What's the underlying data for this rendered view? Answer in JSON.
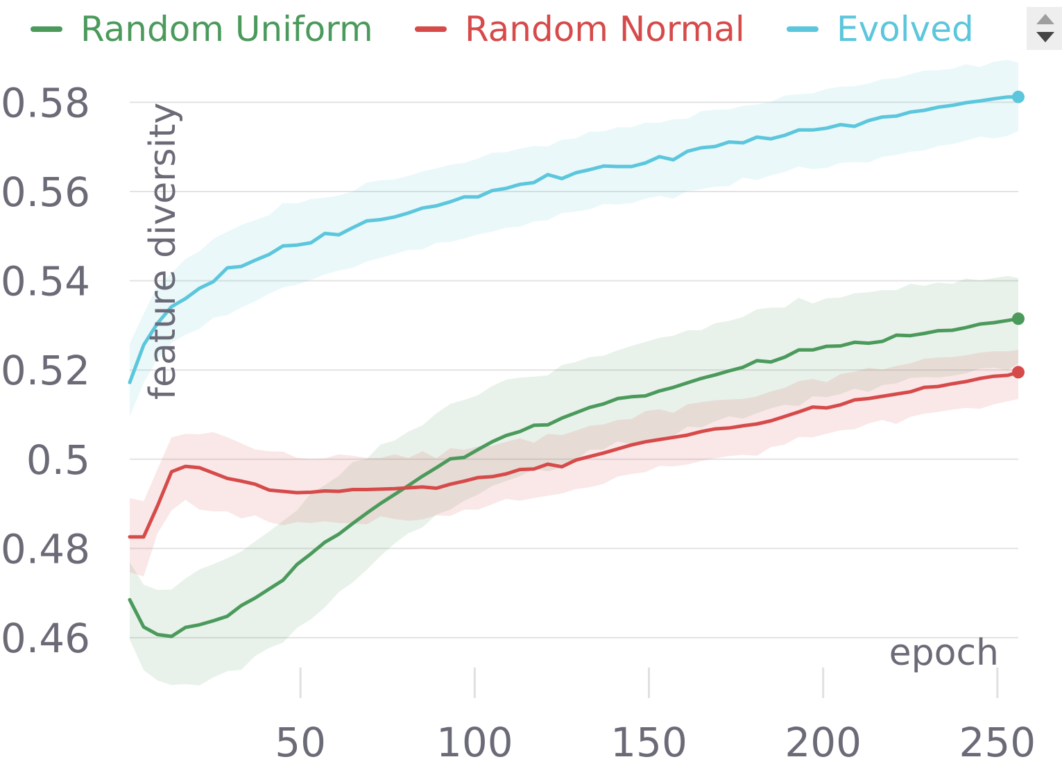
{
  "legend": {
    "items": [
      {
        "label": "Random Uniform",
        "color": "#4b9a5c"
      },
      {
        "label": "Random Normal",
        "color": "#d64a4a"
      },
      {
        "label": "Evolved",
        "color": "#5bc6dc"
      }
    ]
  },
  "scroll_control": {
    "up_icon": "triangle-up-icon",
    "down_icon": "triangle-down-icon"
  },
  "chart_data": {
    "type": "line",
    "xlabel": "epoch",
    "ylabel": "feature diversity",
    "xlim": [
      1,
      256
    ],
    "ylim": [
      0.45,
      0.59
    ],
    "xticks": [
      50,
      100,
      150,
      200,
      250
    ],
    "yticks": [
      0.46,
      0.48,
      0.5,
      0.52,
      0.54,
      0.56,
      0.58
    ],
    "ytick_labels": [
      "0.46",
      "0.48",
      "0.5",
      "0.52",
      "0.54",
      "0.56",
      "0.58"
    ],
    "xtick_labels": [
      "50",
      "100",
      "150",
      "200",
      "250"
    ],
    "grid": true,
    "legend_position": "top",
    "series": [
      {
        "name": "Random Uniform",
        "color": "#4b9a5c",
        "x": [
          1,
          5,
          9,
          13,
          17,
          21,
          25,
          29,
          33,
          37,
          41,
          45,
          49,
          53,
          57,
          61,
          65,
          69,
          73,
          77,
          81,
          85,
          89,
          93,
          97,
          101,
          105,
          109,
          113,
          117,
          121,
          125,
          129,
          133,
          137,
          141,
          145,
          149,
          153,
          157,
          161,
          165,
          169,
          173,
          177,
          181,
          185,
          189,
          193,
          197,
          201,
          205,
          209,
          213,
          217,
          221,
          225,
          229,
          233,
          237,
          241,
          245,
          249,
          253,
          256
        ],
        "y": [
          0.4685,
          0.4624,
          0.4607,
          0.4603,
          0.4623,
          0.4629,
          0.4638,
          0.4648,
          0.4672,
          0.4689,
          0.4709,
          0.4729,
          0.4764,
          0.4788,
          0.4814,
          0.4832,
          0.4856,
          0.4879,
          0.4901,
          0.4921,
          0.4941,
          0.4962,
          0.4981,
          0.5001,
          0.5004,
          0.5022,
          0.5039,
          0.5053,
          0.5062,
          0.5076,
          0.5077,
          0.5092,
          0.5104,
          0.5116,
          0.5124,
          0.5136,
          0.514,
          0.5142,
          0.5153,
          0.5161,
          0.5171,
          0.5181,
          0.5189,
          0.5198,
          0.5206,
          0.5221,
          0.5218,
          0.5229,
          0.5245,
          0.5245,
          0.5253,
          0.5254,
          0.5262,
          0.526,
          0.5264,
          0.5278,
          0.5277,
          0.5282,
          0.5288,
          0.5289,
          0.5295,
          0.5303,
          0.5306,
          0.5311,
          0.5315
        ],
        "lower": [
          0.4596,
          0.4527,
          0.4504,
          0.4494,
          0.4496,
          0.4493,
          0.4511,
          0.4525,
          0.4528,
          0.4559,
          0.4577,
          0.4589,
          0.4622,
          0.4641,
          0.4668,
          0.4702,
          0.4724,
          0.4752,
          0.4783,
          0.4811,
          0.4834,
          0.4847,
          0.4876,
          0.4887,
          0.4907,
          0.4921,
          0.494,
          0.4951,
          0.4962,
          0.4978,
          0.4973,
          0.4981,
          0.4999,
          0.5021,
          0.5022,
          0.504,
          0.5033,
          0.5039,
          0.5041,
          0.5052,
          0.5073,
          0.5071,
          0.5085,
          0.5096,
          0.5091,
          0.5103,
          0.5114,
          0.5122,
          0.5119,
          0.5141,
          0.5139,
          0.5146,
          0.5158,
          0.5151,
          0.5166,
          0.517,
          0.5182,
          0.5184,
          0.5183,
          0.5187,
          0.5192,
          0.5203,
          0.5205,
          0.52,
          0.5215
        ],
        "upper": [
          0.4769,
          0.4719,
          0.4707,
          0.4708,
          0.4733,
          0.4753,
          0.4765,
          0.4778,
          0.4793,
          0.4816,
          0.4838,
          0.4862,
          0.4885,
          0.4924,
          0.4942,
          0.4963,
          0.4994,
          0.5001,
          0.5033,
          0.5042,
          0.5062,
          0.5076,
          0.5103,
          0.5124,
          0.5133,
          0.5144,
          0.5164,
          0.5178,
          0.5183,
          0.5185,
          0.5188,
          0.5211,
          0.5218,
          0.5229,
          0.5232,
          0.5244,
          0.5254,
          0.5263,
          0.5272,
          0.5277,
          0.5289,
          0.5289,
          0.5305,
          0.531,
          0.5319,
          0.5336,
          0.534,
          0.534,
          0.5362,
          0.5349,
          0.5361,
          0.5362,
          0.5372,
          0.5374,
          0.5379,
          0.5379,
          0.5393,
          0.5389,
          0.5396,
          0.5393,
          0.5405,
          0.5401,
          0.5406,
          0.5411,
          0.5406
        ]
      },
      {
        "name": "Random Normal",
        "color": "#d64a4a",
        "x": [
          1,
          5,
          9,
          13,
          17,
          21,
          25,
          29,
          33,
          37,
          41,
          45,
          49,
          53,
          57,
          61,
          65,
          69,
          73,
          77,
          81,
          85,
          89,
          93,
          97,
          101,
          105,
          109,
          113,
          117,
          121,
          125,
          129,
          133,
          137,
          141,
          145,
          149,
          153,
          157,
          161,
          165,
          169,
          173,
          177,
          181,
          185,
          189,
          193,
          197,
          201,
          205,
          209,
          213,
          217,
          221,
          225,
          229,
          233,
          237,
          241,
          245,
          249,
          253,
          256
        ],
        "y": [
          0.4826,
          0.4826,
          0.4896,
          0.4972,
          0.4984,
          0.4981,
          0.4969,
          0.4957,
          0.4951,
          0.4944,
          0.4931,
          0.4928,
          0.4925,
          0.4926,
          0.4929,
          0.4928,
          0.4932,
          0.4932,
          0.4933,
          0.4934,
          0.4936,
          0.4938,
          0.4935,
          0.4944,
          0.4951,
          0.4959,
          0.4961,
          0.4967,
          0.4977,
          0.4978,
          0.4989,
          0.4983,
          0.4998,
          0.5006,
          0.5014,
          0.5023,
          0.5032,
          0.5039,
          0.5044,
          0.5049,
          0.5054,
          0.5062,
          0.5068,
          0.507,
          0.5075,
          0.5079,
          0.5086,
          0.5096,
          0.5106,
          0.5117,
          0.5115,
          0.5122,
          0.5133,
          0.5136,
          0.5141,
          0.5146,
          0.5151,
          0.5161,
          0.5163,
          0.5169,
          0.5174,
          0.5181,
          0.5186,
          0.5188,
          0.5195
        ],
        "lower": [
          0.4747,
          0.4737,
          0.4834,
          0.4885,
          0.4909,
          0.4887,
          0.4883,
          0.4883,
          0.4867,
          0.4874,
          0.4859,
          0.4852,
          0.4859,
          0.4857,
          0.4861,
          0.4857,
          0.4856,
          0.4854,
          0.4872,
          0.4866,
          0.4862,
          0.4865,
          0.4874,
          0.4873,
          0.4887,
          0.4887,
          0.4899,
          0.4911,
          0.4907,
          0.4913,
          0.4918,
          0.4923,
          0.4933,
          0.4937,
          0.4945,
          0.4961,
          0.4967,
          0.4971,
          0.4985,
          0.4984,
          0.4988,
          0.4996,
          0.5002,
          0.5007,
          0.501,
          0.5008,
          0.5027,
          0.5033,
          0.505,
          0.5049,
          0.5057,
          0.5065,
          0.5067,
          0.508,
          0.5088,
          0.5079,
          0.5095,
          0.5102,
          0.5106,
          0.5111,
          0.5115,
          0.5113,
          0.5123,
          0.513,
          0.5135
        ],
        "upper": [
          0.4913,
          0.4906,
          0.4978,
          0.5049,
          0.5057,
          0.5056,
          0.5061,
          0.5049,
          0.5036,
          0.5022,
          0.5018,
          0.5017,
          0.5003,
          0.5001,
          0.5002,
          0.5011,
          0.5008,
          0.5003,
          0.5003,
          0.5011,
          0.5003,
          0.5018,
          0.5002,
          0.5025,
          0.5021,
          0.5029,
          0.503,
          0.5039,
          0.5047,
          0.5037,
          0.5057,
          0.5054,
          0.5064,
          0.5075,
          0.5078,
          0.5088,
          0.509,
          0.5108,
          0.5112,
          0.5104,
          0.5123,
          0.5128,
          0.5132,
          0.5134,
          0.5135,
          0.5141,
          0.5152,
          0.516,
          0.5175,
          0.518,
          0.5173,
          0.5191,
          0.5196,
          0.5205,
          0.5201,
          0.5209,
          0.5215,
          0.5225,
          0.5228,
          0.5229,
          0.5233,
          0.5239,
          0.5242,
          0.5242,
          0.5245
        ]
      },
      {
        "name": "Evolved",
        "color": "#5bc6dc",
        "x": [
          1,
          5,
          9,
          13,
          17,
          21,
          25,
          29,
          33,
          37,
          41,
          45,
          49,
          53,
          57,
          61,
          65,
          69,
          73,
          77,
          81,
          85,
          89,
          93,
          97,
          101,
          105,
          109,
          113,
          117,
          121,
          125,
          129,
          133,
          137,
          141,
          145,
          149,
          153,
          157,
          161,
          165,
          169,
          173,
          177,
          181,
          185,
          189,
          193,
          197,
          201,
          205,
          209,
          213,
          217,
          221,
          225,
          229,
          233,
          237,
          241,
          245,
          249,
          253,
          256
        ],
        "y": [
          0.5172,
          0.5256,
          0.5305,
          0.5342,
          0.536,
          0.5383,
          0.5398,
          0.5429,
          0.5432,
          0.5446,
          0.5459,
          0.5478,
          0.548,
          0.5485,
          0.5506,
          0.5503,
          0.5519,
          0.5534,
          0.5537,
          0.5543,
          0.5552,
          0.5563,
          0.5568,
          0.5577,
          0.5588,
          0.5588,
          0.5602,
          0.5607,
          0.5616,
          0.562,
          0.5638,
          0.5629,
          0.5642,
          0.5649,
          0.5657,
          0.5656,
          0.5656,
          0.5664,
          0.5678,
          0.5671,
          0.569,
          0.5698,
          0.5701,
          0.5711,
          0.5709,
          0.5722,
          0.5718,
          0.5726,
          0.5738,
          0.5738,
          0.5742,
          0.575,
          0.5746,
          0.5759,
          0.5767,
          0.5769,
          0.5778,
          0.5782,
          0.5789,
          0.5793,
          0.5799,
          0.5803,
          0.5808,
          0.5812,
          0.5812
        ],
        "lower": [
          0.5096,
          0.5171,
          0.5225,
          0.5261,
          0.5279,
          0.5292,
          0.5317,
          0.5323,
          0.534,
          0.5354,
          0.5371,
          0.5385,
          0.5391,
          0.5402,
          0.5414,
          0.5423,
          0.5429,
          0.5443,
          0.5451,
          0.546,
          0.5469,
          0.547,
          0.5485,
          0.5487,
          0.5495,
          0.5504,
          0.551,
          0.5519,
          0.5521,
          0.5533,
          0.5536,
          0.5552,
          0.5555,
          0.556,
          0.5572,
          0.5571,
          0.5574,
          0.5584,
          0.559,
          0.5584,
          0.5601,
          0.5605,
          0.5611,
          0.5612,
          0.5631,
          0.5626,
          0.5636,
          0.5644,
          0.5656,
          0.565,
          0.5653,
          0.5664,
          0.5666,
          0.5665,
          0.5678,
          0.5682,
          0.5689,
          0.5692,
          0.5702,
          0.5706,
          0.5714,
          0.5723,
          0.5719,
          0.5725,
          0.5736
        ],
        "upper": [
          0.5259,
          0.5326,
          0.5389,
          0.5417,
          0.5449,
          0.5466,
          0.5494,
          0.551,
          0.5525,
          0.5536,
          0.5547,
          0.5574,
          0.5573,
          0.5583,
          0.5586,
          0.5591,
          0.56,
          0.562,
          0.5625,
          0.5627,
          0.5635,
          0.5645,
          0.5652,
          0.566,
          0.5664,
          0.5674,
          0.5687,
          0.5688,
          0.5696,
          0.5702,
          0.5701,
          0.5716,
          0.5719,
          0.5734,
          0.5735,
          0.5744,
          0.5744,
          0.5754,
          0.5754,
          0.5762,
          0.5763,
          0.578,
          0.5783,
          0.5784,
          0.5792,
          0.5795,
          0.5801,
          0.5815,
          0.5818,
          0.582,
          0.583,
          0.5835,
          0.5836,
          0.5842,
          0.5852,
          0.5854,
          0.5863,
          0.5871,
          0.5872,
          0.5875,
          0.5885,
          0.5879,
          0.5891,
          0.5895,
          0.5889
        ]
      }
    ]
  }
}
